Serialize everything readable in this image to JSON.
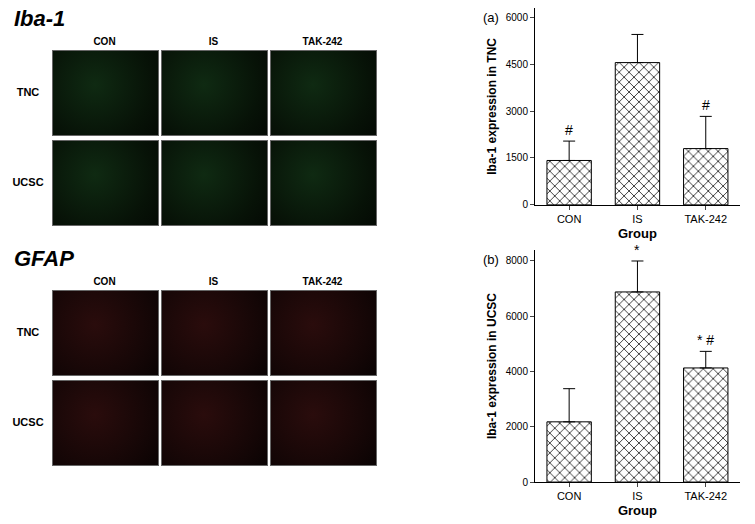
{
  "micrographs": [
    {
      "title": "Iba-1",
      "columns": [
        "CON",
        "IS",
        "TAK-242"
      ],
      "rows": [
        "TNC",
        "UCSC"
      ]
    },
    {
      "title": "GFAP",
      "columns": [
        "CON",
        "IS",
        "TAK-242"
      ],
      "rows": [
        "TNC",
        "UCSC"
      ]
    }
  ],
  "chart_data": [
    {
      "type": "bar",
      "label": "(a)",
      "x_label": "Group",
      "y_label": "Iba-1 expression in TNC",
      "categories": [
        "CON",
        "IS",
        "TAK-242"
      ],
      "values": [
        1420,
        4550,
        1800
      ],
      "errors": [
        620,
        900,
        1030
      ],
      "annotations": [
        {
          "category": "CON",
          "text": "#"
        },
        {
          "category": "TAK-242",
          "text": "#"
        }
      ],
      "color": "#000000",
      "ylim": [
        0,
        6300
      ],
      "yticks": [
        0,
        1500,
        3000,
        4500,
        6000
      ],
      "grid": false
    },
    {
      "type": "bar",
      "label": "(b)",
      "x_label": "Group",
      "y_label": "Iba-1 expression in UCSC",
      "categories": [
        "CON",
        "IS",
        "TAK-242"
      ],
      "values": [
        2180,
        6880,
        4130
      ],
      "errors": [
        1200,
        1120,
        600
      ],
      "annotations": [
        {
          "category": "IS",
          "text": "*"
        },
        {
          "category": "TAK-242",
          "text": "* #"
        }
      ],
      "color": "#000000",
      "ylim": [
        0,
        8400
      ],
      "yticks": [
        0,
        2000,
        4000,
        6000,
        8000
      ],
      "grid": false
    }
  ]
}
